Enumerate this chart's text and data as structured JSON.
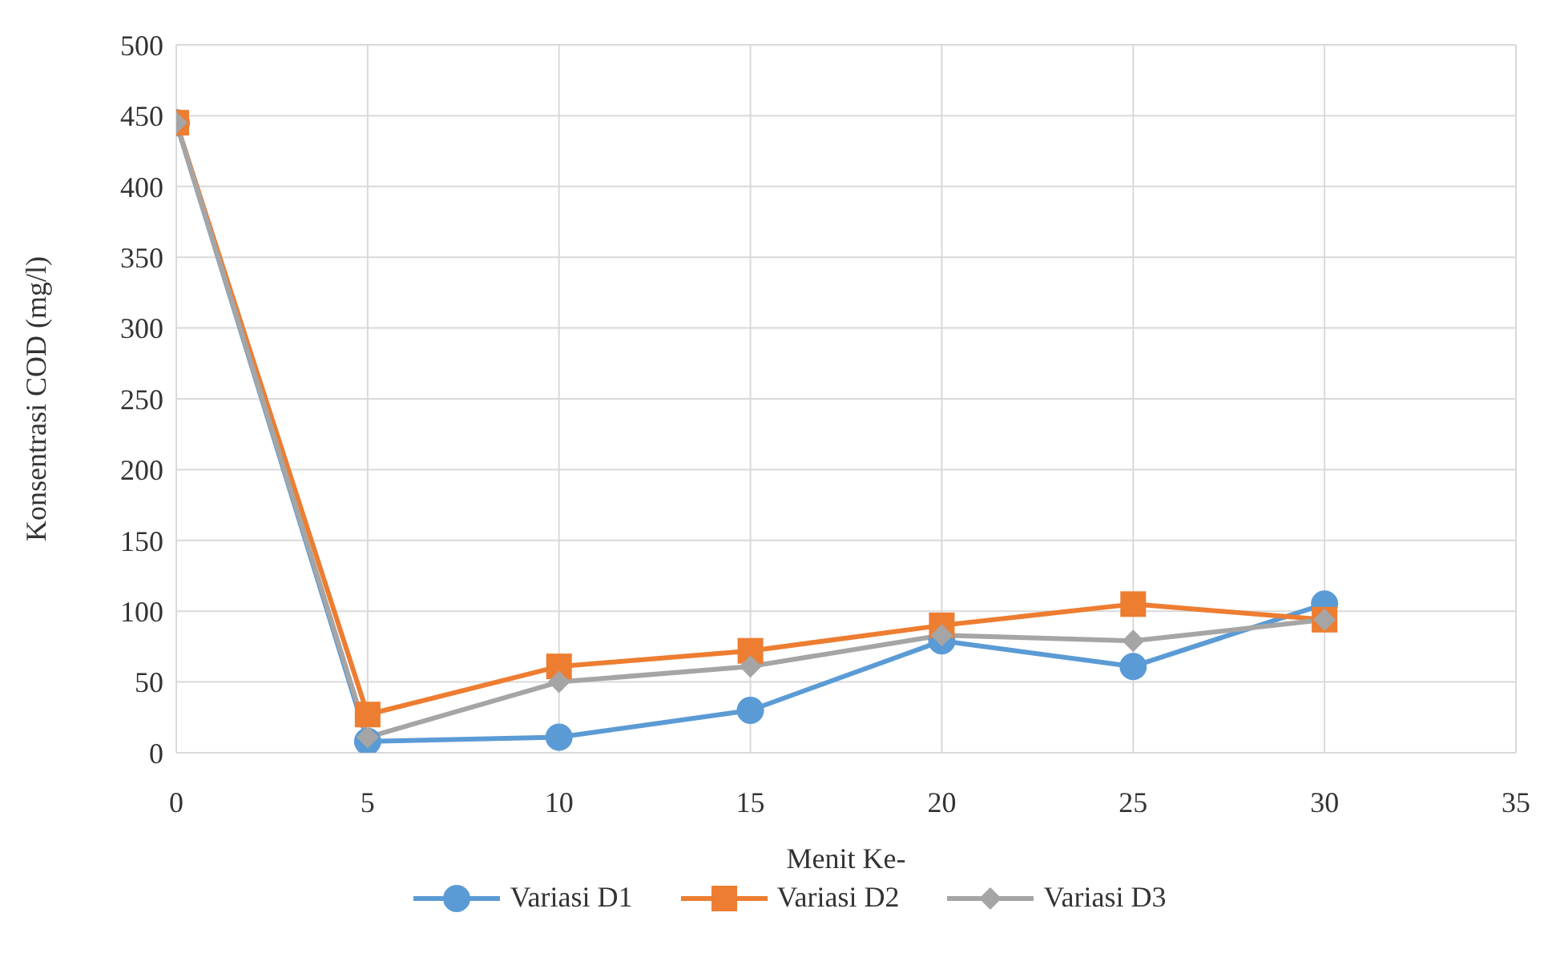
{
  "chart_data": {
    "type": "line",
    "xlabel": "Menit Ke-",
    "ylabel": "Konsentrasi COD  (mg/l)",
    "x": [
      0,
      5,
      10,
      15,
      20,
      25,
      30
    ],
    "xlim": [
      0,
      35
    ],
    "xticks": [
      0,
      5,
      10,
      15,
      20,
      25,
      30,
      35
    ],
    "ylim": [
      0,
      500
    ],
    "yticks": [
      0,
      50,
      100,
      150,
      200,
      250,
      300,
      350,
      400,
      450,
      500
    ],
    "grid": true,
    "legend": "bottom",
    "series": [
      {
        "name": "Variasi D1",
        "color": "#5b9bd5",
        "marker": "circle",
        "values": [
          445,
          8,
          11,
          30,
          79,
          61,
          105
        ]
      },
      {
        "name": "Variasi D2",
        "color": "#ed7d31",
        "marker": "square",
        "values": [
          445,
          27,
          61,
          72,
          90,
          105,
          94
        ]
      },
      {
        "name": "Variasi D3",
        "color": "#a5a5a5",
        "marker": "diamond",
        "values": [
          445,
          11,
          50,
          61,
          83,
          79,
          94
        ]
      }
    ]
  }
}
